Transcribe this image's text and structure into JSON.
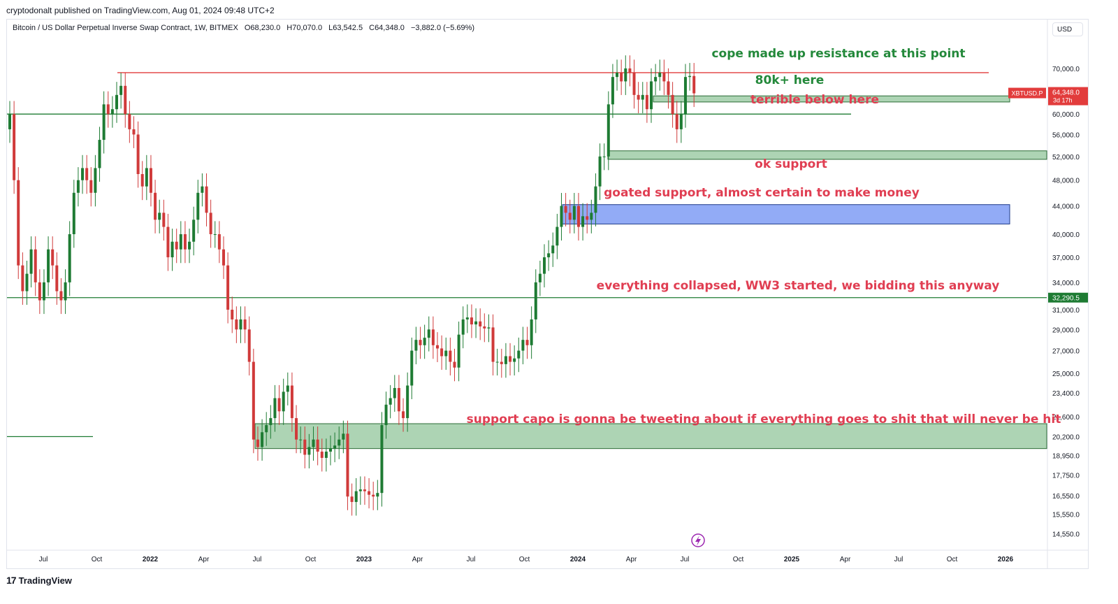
{
  "header": {
    "publisher": "cryptodonalt published on TradingView.com, Aug 01, 2024 09:48 UTC+2"
  },
  "legend": {
    "symbol": "Bitcoin / US Dollar Perpetual Inverse Swap Contract, 1W, BITMEX",
    "open": "O68,230.0",
    "high": "H70,070.0",
    "low": "L63,542.5",
    "close": "C64,348.0",
    "change": "−3,882.0 (−5.69%)"
  },
  "currency_label": "USD",
  "footer": {
    "logo_mark": "17",
    "logo_text": "TradingView"
  },
  "colors": {
    "bull": "#1e7b33",
    "bear": "#d03a3a",
    "zone_green": "#9fcda7",
    "zone_blue": "#7f9cf5",
    "line_green": "#1e7b33",
    "line_red": "#e23c3c",
    "note_green": "#24893b",
    "note_red": "#e03e52"
  },
  "chart_data": {
    "type": "candlestick",
    "title": "",
    "y_scale": "log",
    "ylim": [
      13800,
      78000
    ],
    "y_ticks": [
      14550,
      15550,
      16550,
      17750,
      18950,
      20200,
      21600,
      23400,
      25000,
      27000,
      29000,
      31000,
      34000,
      37000,
      40000,
      44000,
      48000,
      52000,
      56000,
      60000,
      70000
    ],
    "x_tick_labels": [
      "Jul",
      "Oct",
      "2022",
      "Apr",
      "Jul",
      "Oct",
      "2023",
      "Apr",
      "Jul",
      "Oct",
      "2024",
      "Apr",
      "Jul",
      "Oct",
      "2025",
      "Apr",
      "Jul",
      "Oct",
      "2026"
    ],
    "x_tick_bold": [
      "2022",
      "2023",
      "2024",
      "2025",
      "2026"
    ],
    "price_axis_tags": [
      {
        "label": "64,348.0",
        "sub": "3d 17h",
        "value": 64348,
        "color": "#e23c3c"
      },
      {
        "label": "32,290.5",
        "value": 32290.5,
        "color": "#1e7b33"
      }
    ],
    "symbol_tag": "XBTUSD.P",
    "series": [
      {
        "name": "XBTUSD.P weekly closes",
        "kind": "close",
        "values": [
          60000,
          48000,
          36000,
          33000,
          35000,
          38000,
          34000,
          32000,
          34000,
          38000,
          36000,
          33000,
          32000,
          34000,
          40000,
          46000,
          48000,
          50000,
          48000,
          46000,
          50000,
          55000,
          62000,
          60000,
          61000,
          64000,
          66000,
          60000,
          57000,
          56000,
          49000,
          47000,
          50000,
          46000,
          42000,
          43000,
          41000,
          37000,
          39000,
          38000,
          40000,
          38000,
          39000,
          42000,
          46000,
          47000,
          43000,
          40000,
          40000,
          38000,
          36000,
          31000,
          30000,
          29000,
          30000,
          29000,
          26000,
          20000,
          19500,
          20500,
          21000,
          21500,
          23000,
          22000,
          23500,
          24000,
          21500,
          20000,
          20000,
          19000,
          19500,
          20000,
          19200,
          18800,
          19200,
          19400,
          19600,
          20000,
          20400,
          16500,
          16200,
          16800,
          16900,
          16800,
          16600,
          16500,
          16700,
          21000,
          22500,
          23000,
          23800,
          22000,
          21500,
          24000,
          27000,
          28000,
          27500,
          28200,
          29000,
          27500,
          27200,
          26500,
          27000,
          26000,
          25500,
          28500,
          30000,
          30200,
          29500,
          29800,
          29300,
          29100,
          29200,
          26000,
          26000,
          25800,
          26500,
          26000,
          26300,
          27000,
          28000,
          27500,
          30000,
          34000,
          35000,
          37000,
          37500,
          38500,
          41000,
          44000,
          43000,
          42000,
          44000,
          41000,
          42500,
          42000,
          43000,
          47000,
          52000,
          52000,
          62000,
          68000,
          69000,
          67000,
          70000,
          69000,
          64000,
          63000,
          64000,
          61000,
          67000,
          68000,
          69000,
          67000,
          64000,
          60000,
          57000,
          60000,
          68000,
          68230,
          64348
        ]
      }
    ],
    "levels": [
      {
        "kind": "horizontal",
        "price": 69000,
        "color": "red"
      },
      {
        "kind": "horizontal",
        "price": 60000,
        "color": "green"
      },
      {
        "kind": "horizontal",
        "price": 32290.5,
        "color": "green"
      },
      {
        "kind": "horizontal",
        "price": 20200,
        "color": "green"
      }
    ],
    "zones": [
      {
        "from": 62500,
        "to": 63800,
        "color": "green"
      },
      {
        "from": 51500,
        "to": 53000,
        "color": "green"
      },
      {
        "from": 41400,
        "to": 44200,
        "color": "blue"
      },
      {
        "from": 19400,
        "to": 21100,
        "color": "green"
      }
    ],
    "annotations": [
      {
        "text": "cope made up resistance at this point",
        "color": "green"
      },
      {
        "text": "80k+ here",
        "color": "green"
      },
      {
        "text": "terrible below here",
        "color": "red"
      },
      {
        "text": "ok support",
        "color": "red"
      },
      {
        "text": "goated support, almost certain to make money",
        "color": "red"
      },
      {
        "text": "everything collapsed, WW3 started, we bidding this anyway",
        "color": "red"
      },
      {
        "text": "support capo is gonna be tweeting about if everything goes to shit that will never be hit",
        "color": "red"
      }
    ]
  }
}
